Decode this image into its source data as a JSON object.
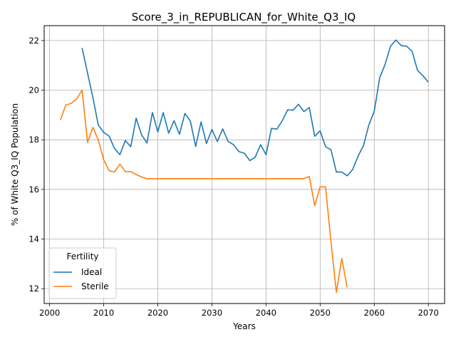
{
  "chart_data": {
    "type": "line",
    "title": "Score_3_in_REPUBLICAN_for_White_Q3_IQ",
    "xlabel": "Years",
    "ylabel": "% of White Q3_IQ Population",
    "xlim": [
      1999,
      2073
    ],
    "ylim": [
      11.4,
      22.6
    ],
    "xticks": [
      2000,
      2010,
      2020,
      2030,
      2040,
      2050,
      2060,
      2070
    ],
    "yticks": [
      12,
      14,
      16,
      18,
      20,
      22
    ],
    "grid": true,
    "legend": {
      "title": "Fertility",
      "placement": "lower-left"
    },
    "series": [
      {
        "name": "Ideal",
        "color": "#1f77b4",
        "x": [
          2006,
          2007,
          2008,
          2009,
          2010,
          2011,
          2012,
          2013,
          2014,
          2015,
          2016,
          2017,
          2018,
          2019,
          2020,
          2021,
          2022,
          2023,
          2024,
          2025,
          2026,
          2027,
          2028,
          2029,
          2030,
          2031,
          2032,
          2033,
          2034,
          2035,
          2036,
          2037,
          2038,
          2039,
          2040,
          2041,
          2042,
          2043,
          2044,
          2045,
          2046,
          2047,
          2048,
          2049,
          2050,
          2051,
          2052,
          2053,
          2054,
          2055,
          2056,
          2057,
          2058,
          2059,
          2060,
          2061,
          2062,
          2063,
          2064,
          2065,
          2066,
          2067,
          2068,
          2069,
          2070
        ],
        "values": [
          21.7,
          20.7,
          19.7,
          18.6,
          18.3,
          18.15,
          17.65,
          17.4,
          17.97,
          17.72,
          18.87,
          18.2,
          17.87,
          19.1,
          18.32,
          19.1,
          18.27,
          18.77,
          18.22,
          19.06,
          18.76,
          17.73,
          18.72,
          17.85,
          18.42,
          17.93,
          18.44,
          17.93,
          17.8,
          17.52,
          17.46,
          17.16,
          17.3,
          17.8,
          17.4,
          18.46,
          18.43,
          18.77,
          19.21,
          19.19,
          19.43,
          19.14,
          19.3,
          18.14,
          18.36,
          17.72,
          17.6,
          16.7,
          16.7,
          16.55,
          16.8,
          17.34,
          17.76,
          18.6,
          19.15,
          20.5,
          21.04,
          21.77,
          22.02,
          21.8,
          21.77,
          21.56,
          20.8,
          20.58,
          20.32
        ]
      },
      {
        "name": "Sterile",
        "color": "#ff7f0e",
        "x": [
          2002,
          2003,
          2004,
          2005,
          2006,
          2007,
          2008,
          2009,
          2010,
          2011,
          2012,
          2013,
          2014,
          2015,
          2016,
          2017,
          2018,
          2019,
          2020,
          2021,
          2022,
          2023,
          2024,
          2025,
          2026,
          2027,
          2028,
          2029,
          2030,
          2031,
          2032,
          2033,
          2034,
          2035,
          2036,
          2037,
          2038,
          2039,
          2040,
          2041,
          2042,
          2043,
          2044,
          2045,
          2046,
          2047,
          2048,
          2049,
          2050,
          2051,
          2052,
          2053,
          2054,
          2055
        ],
        "values": [
          18.8,
          19.4,
          19.47,
          19.65,
          20.0,
          17.9,
          18.5,
          18.0,
          17.2,
          16.75,
          16.7,
          17.02,
          16.72,
          16.72,
          16.6,
          16.5,
          16.43,
          16.43,
          16.43,
          16.43,
          16.43,
          16.43,
          16.43,
          16.43,
          16.43,
          16.43,
          16.43,
          16.43,
          16.43,
          16.43,
          16.43,
          16.43,
          16.43,
          16.43,
          16.43,
          16.43,
          16.43,
          16.43,
          16.43,
          16.43,
          16.43,
          16.43,
          16.43,
          16.43,
          16.43,
          16.43,
          16.52,
          15.35,
          16.1,
          16.1,
          13.9,
          11.85,
          13.22,
          12.05
        ]
      }
    ]
  }
}
